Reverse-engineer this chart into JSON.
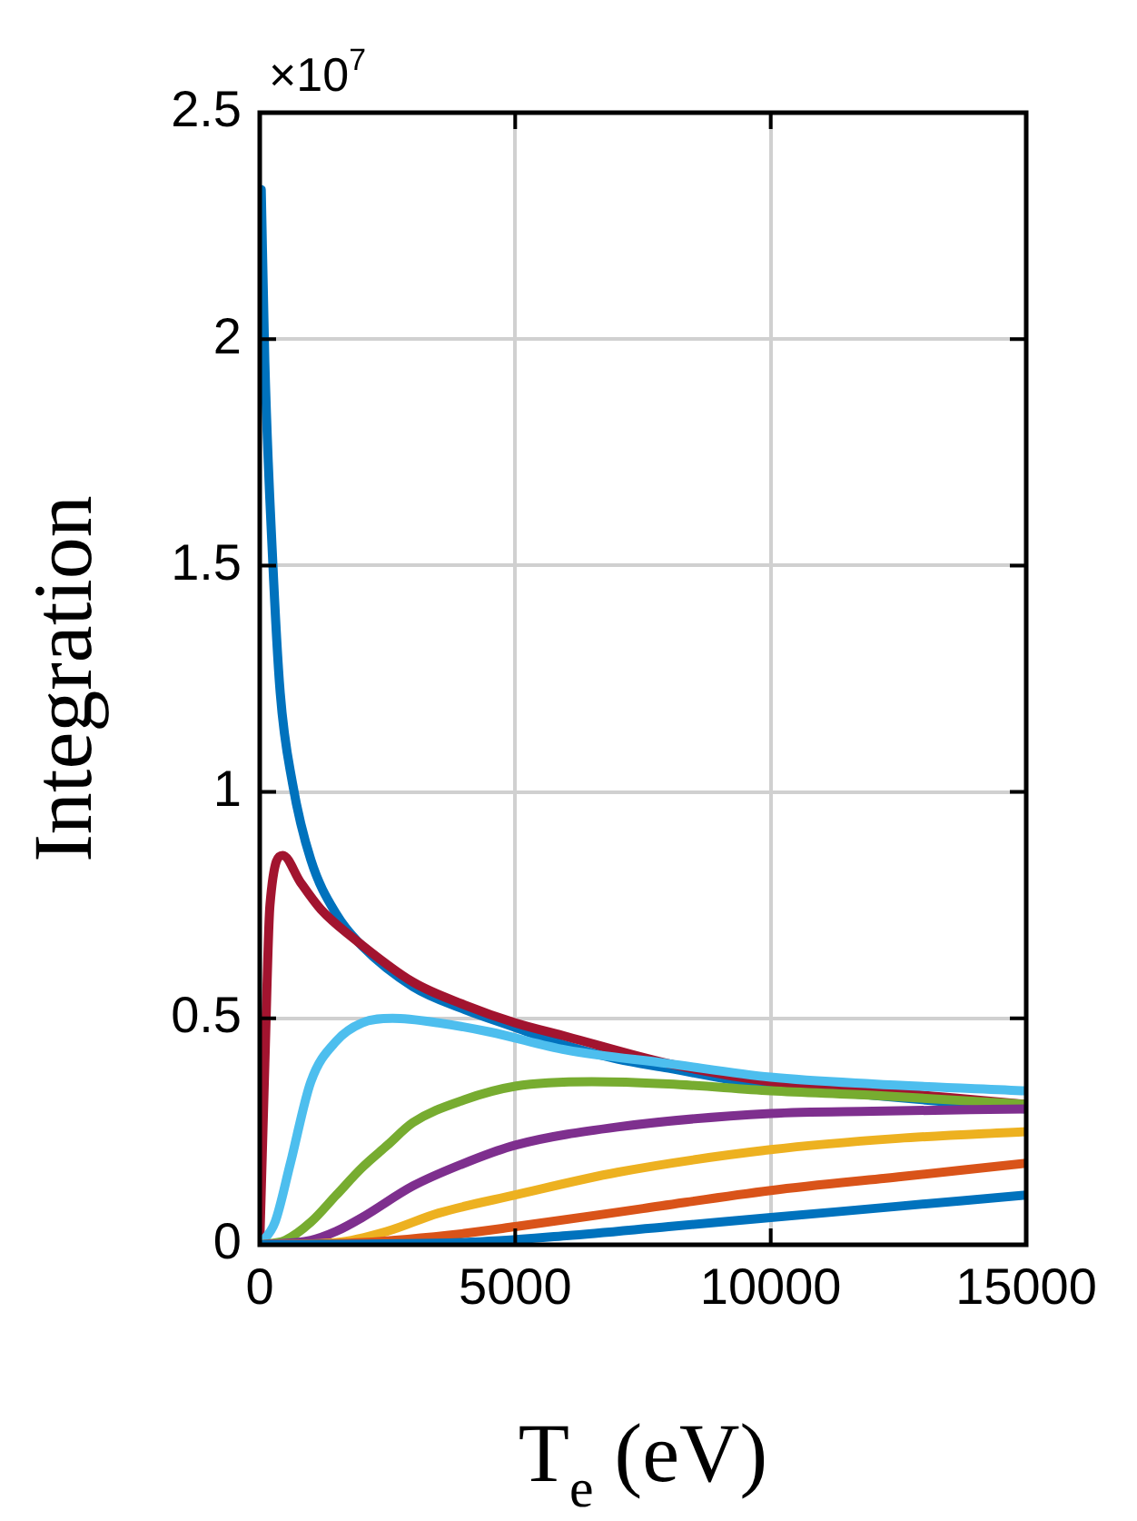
{
  "chart_data": {
    "type": "line",
    "xlabel": "T$_{e}$ (eV)",
    "ylabel": "Integration",
    "annotations": [
      "×10$^{7}$"
    ],
    "xlim": [
      0,
      15000
    ],
    "xticks": [
      0,
      5000,
      10000,
      15000
    ],
    "ylim": [
      0,
      2.5
    ],
    "yticks": [
      0,
      0.5,
      1,
      1.5,
      2,
      2.5
    ],
    "grid": true,
    "legend": false,
    "marker": "none",
    "line_style": "solid",
    "series": [
      {
        "color": "#0072bd",
        "x": [
          0,
          4000,
          6000,
          8000,
          10000,
          12500,
          15000
        ],
        "values": [
          0,
          0.005,
          0.02,
          0.04,
          0.06,
          0.085,
          0.11
        ]
      },
      {
        "color": "#d95319",
        "x": [
          0,
          2000,
          4000,
          5000,
          7500,
          10000,
          12500,
          15000
        ],
        "values": [
          0,
          0.005,
          0.025,
          0.04,
          0.08,
          0.12,
          0.15,
          0.18
        ]
      },
      {
        "color": "#edb120",
        "x": [
          0,
          1500,
          2500,
          3500,
          5000,
          7000,
          10000,
          12500,
          15000
        ],
        "values": [
          0,
          0.005,
          0.03,
          0.07,
          0.11,
          0.16,
          0.21,
          0.235,
          0.25
        ]
      },
      {
        "color": "#7e2f8e",
        "x": [
          0,
          1000,
          1500,
          2000,
          3000,
          4000,
          5000,
          7000,
          10000,
          12000,
          15000
        ],
        "values": [
          0,
          0.01,
          0.03,
          0.06,
          0.13,
          0.18,
          0.22,
          0.26,
          0.29,
          0.295,
          0.3
        ]
      },
      {
        "color": "#77ac30",
        "x": [
          0,
          500,
          1000,
          1500,
          2000,
          2500,
          3000,
          4000,
          5000,
          6500,
          8000,
          10000,
          12000,
          15000
        ],
        "values": [
          0,
          0.01,
          0.05,
          0.11,
          0.17,
          0.22,
          0.27,
          0.32,
          0.35,
          0.36,
          0.355,
          0.34,
          0.33,
          0.31
        ]
      },
      {
        "color": "#4dbeee",
        "x": [
          0,
          300,
          600,
          1000,
          1500,
          2000,
          2600,
          3500,
          4500,
          6000,
          8000,
          10000,
          12000,
          15000
        ],
        "values": [
          0,
          0.05,
          0.18,
          0.36,
          0.45,
          0.49,
          0.5,
          0.49,
          0.47,
          0.43,
          0.4,
          0.37,
          0.355,
          0.34
        ]
      },
      {
        "color": "#a2142f",
        "x": [
          0,
          100,
          200,
          450,
          800,
          1200,
          1800,
          3000,
          4000,
          5000,
          6000,
          8000,
          10000,
          12000,
          15000
        ],
        "values": [
          0,
          0.4,
          0.75,
          0.86,
          0.8,
          0.74,
          0.68,
          0.58,
          0.53,
          0.49,
          0.46,
          0.4,
          0.36,
          0.34,
          0.31
        ]
      },
      {
        "color": "#0072bd",
        "x": [
          30,
          100,
          250,
          400,
          640,
          1000,
          1500,
          2000,
          3000,
          4000,
          5000,
          6000,
          7000,
          8000,
          10000,
          12000,
          15000
        ],
        "values": [
          2.33,
          1.95,
          1.52,
          1.22,
          1.02,
          0.85,
          0.73,
          0.66,
          0.57,
          0.52,
          0.48,
          0.44,
          0.41,
          0.39,
          0.35,
          0.33,
          0.3
        ]
      }
    ]
  }
}
